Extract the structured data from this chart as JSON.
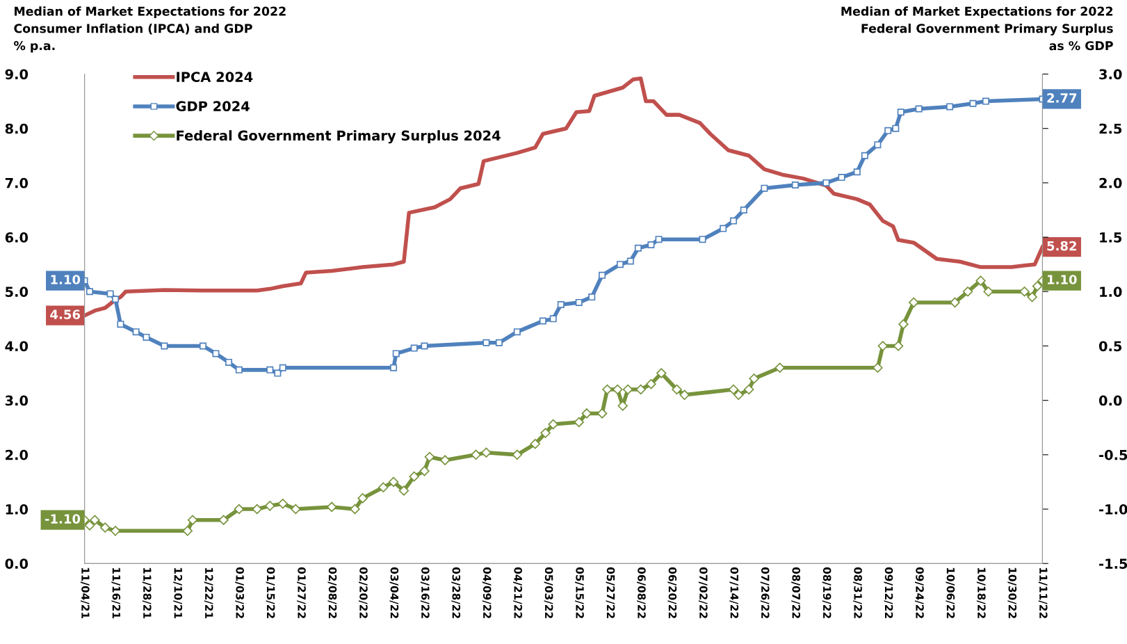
{
  "chart_data": {
    "type": "line",
    "ylabel": "Median of Market Expectations for 2022\nConsumer Inflation (IPCA) and GDP\n% p.a.",
    "y2label": "Median of Market Expectations for 2022\nFederal Government Primary Surplus\nas % GDP",
    "xlim": [
      "2021-11-04",
      "2022-11-11"
    ],
    "xticks": [
      {
        "value": "2021-11-04",
        "label": "11/04/21"
      },
      {
        "value": "2021-11-16",
        "label": "11/16/21"
      },
      {
        "value": "2021-11-28",
        "label": "11/28/21"
      },
      {
        "value": "2021-12-10",
        "label": "12/10/21"
      },
      {
        "value": "2021-12-22",
        "label": "12/22/21"
      },
      {
        "value": "2022-01-03",
        "label": "01/03/22"
      },
      {
        "value": "2022-01-15",
        "label": "01/15/22"
      },
      {
        "value": "2022-01-27",
        "label": "01/27/22"
      },
      {
        "value": "2022-02-08",
        "label": "02/08/22"
      },
      {
        "value": "2022-02-20",
        "label": "02/20/22"
      },
      {
        "value": "2022-03-04",
        "label": "03/04/22"
      },
      {
        "value": "2022-03-16",
        "label": "03/16/22"
      },
      {
        "value": "2022-03-28",
        "label": "03/28/22"
      },
      {
        "value": "2022-04-09",
        "label": "04/09/22"
      },
      {
        "value": "2022-04-21",
        "label": "04/21/22"
      },
      {
        "value": "2022-05-03",
        "label": "05/03/22"
      },
      {
        "value": "2022-05-15",
        "label": "05/15/22"
      },
      {
        "value": "2022-05-27",
        "label": "05/27/22"
      },
      {
        "value": "2022-06-08",
        "label": "06/08/22"
      },
      {
        "value": "2022-06-20",
        "label": "06/20/22"
      },
      {
        "value": "2022-07-02",
        "label": "07/02/22"
      },
      {
        "value": "2022-07-14",
        "label": "07/14/22"
      },
      {
        "value": "2022-07-26",
        "label": "07/26/22"
      },
      {
        "value": "2022-08-07",
        "label": "08/07/22"
      },
      {
        "value": "2022-08-19",
        "label": "08/19/22"
      },
      {
        "value": "2022-08-31",
        "label": "08/31/22"
      },
      {
        "value": "2022-09-12",
        "label": "09/12/22"
      },
      {
        "value": "2022-09-24",
        "label": "09/24/22"
      },
      {
        "value": "2022-10-06",
        "label": "10/06/22"
      },
      {
        "value": "2022-10-18",
        "label": "10/18/22"
      },
      {
        "value": "2022-10-30",
        "label": "10/30/22"
      },
      {
        "value": "2022-11-11",
        "label": "11/11/22"
      }
    ],
    "ylim": [
      0,
      9
    ],
    "yticks": [
      {
        "value": 0,
        "label": "0.0"
      },
      {
        "value": 1,
        "label": "1.0"
      },
      {
        "value": 2,
        "label": "2.0"
      },
      {
        "value": 3,
        "label": "3.0"
      },
      {
        "value": 4,
        "label": "4.0"
      },
      {
        "value": 5,
        "label": "5.0"
      },
      {
        "value": 6,
        "label": "6.0"
      },
      {
        "value": 7,
        "label": "7.0"
      },
      {
        "value": 8,
        "label": "8.0"
      },
      {
        "value": 9,
        "label": "9.0"
      }
    ],
    "y2lim": [
      -1.5,
      3
    ],
    "y2ticks": [
      {
        "value": -1.5,
        "label": "-1.5"
      },
      {
        "value": -1,
        "label": "-1.0"
      },
      {
        "value": -0.5,
        "label": "-0.5"
      },
      {
        "value": 0,
        "label": "0.0"
      },
      {
        "value": 0.5,
        "label": "0.5"
      },
      {
        "value": 1,
        "label": "1.0"
      },
      {
        "value": 1.5,
        "label": "1.5"
      },
      {
        "value": 2,
        "label": "2.0"
      },
      {
        "value": 2.5,
        "label": "2.5"
      },
      {
        "value": 3,
        "label": "3.0"
      }
    ],
    "grid": false,
    "legend": "top left",
    "line_style": "solid",
    "series": [
      {
        "name": "IPCA 2024",
        "color": "#c0504d",
        "marker": "none",
        "x": [
          "2021-11-04",
          "2021-11-08",
          "2021-11-12",
          "2021-11-16",
          "2021-11-18",
          "2021-11-20",
          "2021-12-05",
          "2021-12-20",
          "2022-01-10",
          "2022-01-15",
          "2022-01-20",
          "2022-01-27",
          "2022-01-29",
          "2022-02-08",
          "2022-02-20",
          "2022-03-04",
          "2022-03-08",
          "2022-03-10",
          "2022-03-20",
          "2022-03-26",
          "2022-03-30",
          "2022-04-06",
          "2022-04-08",
          "2022-04-21",
          "2022-04-28",
          "2022-05-01",
          "2022-05-10",
          "2022-05-14",
          "2022-05-19",
          "2022-05-21",
          "2022-06-01",
          "2022-06-05",
          "2022-06-08",
          "2022-06-10",
          "2022-06-13",
          "2022-06-18",
          "2022-06-23",
          "2022-07-01",
          "2022-07-05",
          "2022-07-12",
          "2022-07-20",
          "2022-07-26",
          "2022-08-02",
          "2022-08-10",
          "2022-08-19",
          "2022-08-22",
          "2022-08-31",
          "2022-09-05",
          "2022-09-10",
          "2022-09-14",
          "2022-09-16",
          "2022-09-22",
          "2022-10-01",
          "2022-10-10",
          "2022-10-18",
          "2022-10-30",
          "2022-11-04",
          "2022-11-08",
          "2022-11-11"
        ],
        "values": [
          4.56,
          4.65,
          4.7,
          4.85,
          4.9,
          5.0,
          5.03,
          5.02,
          5.02,
          5.05,
          5.1,
          5.15,
          5.35,
          5.38,
          5.45,
          5.5,
          5.55,
          6.45,
          6.55,
          6.7,
          6.9,
          6.98,
          7.4,
          7.55,
          7.65,
          7.9,
          8.0,
          8.3,
          8.32,
          8.6,
          8.75,
          8.9,
          8.92,
          8.5,
          8.5,
          8.25,
          8.25,
          8.1,
          7.9,
          7.6,
          7.5,
          7.25,
          7.15,
          7.08,
          6.95,
          6.8,
          6.7,
          6.6,
          6.3,
          6.2,
          5.95,
          5.9,
          5.6,
          5.55,
          5.45,
          5.45,
          5.48,
          5.5,
          5.82
        ],
        "value_labels": [
          "4.56",
          null,
          null,
          null,
          null,
          null,
          null,
          null,
          null,
          null,
          null,
          null,
          null,
          null,
          null,
          null,
          null,
          null,
          null,
          null,
          null,
          null,
          null,
          null,
          null,
          null,
          null,
          null,
          null,
          null,
          null,
          null,
          null,
          null,
          null,
          null,
          null,
          null,
          null,
          null,
          null,
          null,
          null,
          null,
          null,
          null,
          null,
          null,
          null,
          null,
          null,
          null,
          null,
          null,
          null,
          null,
          null,
          null,
          "5.82"
        ]
      },
      {
        "name": "GDP 2024",
        "color": "#4f81bd",
        "marker": "square",
        "axis": "y2",
        "x": [
          "2021-11-04",
          "2021-11-06",
          "2021-11-14",
          "2021-11-16",
          "2021-11-18",
          "2021-11-24",
          "2021-11-28",
          "2021-12-05",
          "2021-12-20",
          "2021-12-25",
          "2021-12-30",
          "2022-01-03",
          "2022-01-15",
          "2022-01-18",
          "2022-01-20",
          "2022-03-04",
          "2022-03-05",
          "2022-03-12",
          "2022-03-16",
          "2022-04-09",
          "2022-04-14",
          "2022-04-21",
          "2022-05-01",
          "2022-05-05",
          "2022-05-08",
          "2022-05-15",
          "2022-05-20",
          "2022-05-24",
          "2022-05-31",
          "2022-06-04",
          "2022-06-07",
          "2022-06-12",
          "2022-06-15",
          "2022-07-02",
          "2022-07-10",
          "2022-07-14",
          "2022-07-18",
          "2022-07-26",
          "2022-08-07",
          "2022-08-19",
          "2022-08-25",
          "2022-08-31",
          "2022-09-03",
          "2022-09-08",
          "2022-09-12",
          "2022-09-15",
          "2022-09-17",
          "2022-09-24",
          "2022-10-06",
          "2022-10-15",
          "2022-10-20",
          "2022-11-11"
        ],
        "values": [
          1.1,
          1.0,
          0.98,
          0.93,
          0.7,
          0.63,
          0.58,
          0.5,
          0.5,
          0.43,
          0.35,
          0.28,
          0.28,
          0.25,
          0.3,
          0.3,
          0.43,
          0.48,
          0.5,
          0.53,
          0.53,
          0.63,
          0.73,
          0.75,
          0.88,
          0.9,
          0.95,
          1.15,
          1.25,
          1.28,
          1.4,
          1.43,
          1.48,
          1.48,
          1.58,
          1.65,
          1.75,
          1.95,
          1.98,
          2.0,
          2.05,
          2.1,
          2.25,
          2.35,
          2.48,
          2.5,
          2.65,
          2.68,
          2.7,
          2.73,
          2.75,
          2.77
        ],
        "value_labels": [
          "1.10",
          null,
          null,
          null,
          null,
          null,
          null,
          null,
          null,
          null,
          null,
          null,
          null,
          null,
          null,
          null,
          null,
          null,
          null,
          null,
          null,
          null,
          null,
          null,
          null,
          null,
          null,
          null,
          null,
          null,
          null,
          null,
          null,
          null,
          null,
          null,
          null,
          null,
          null,
          null,
          null,
          null,
          null,
          null,
          null,
          null,
          null,
          null,
          null,
          null,
          null,
          "2.77"
        ]
      },
      {
        "name": "Federal Government Primary Surplus 2024",
        "color": "#77933c",
        "marker": "diamond",
        "axis": "y2",
        "x": [
          "2021-11-04",
          "2021-11-06",
          "2021-11-08",
          "2021-11-12",
          "2021-11-16",
          "2021-12-14",
          "2021-12-16",
          "2021-12-28",
          "2022-01-03",
          "2022-01-10",
          "2022-01-15",
          "2022-01-20",
          "2022-01-25",
          "2022-02-08",
          "2022-02-17",
          "2022-02-20",
          "2022-02-28",
          "2022-03-04",
          "2022-03-08",
          "2022-03-12",
          "2022-03-16",
          "2022-03-18",
          "2022-03-24",
          "2022-04-05",
          "2022-04-09",
          "2022-04-21",
          "2022-04-28",
          "2022-05-02",
          "2022-05-05",
          "2022-05-15",
          "2022-05-18",
          "2022-05-24",
          "2022-05-26",
          "2022-05-30",
          "2022-06-01",
          "2022-06-03",
          "2022-06-08",
          "2022-06-12",
          "2022-06-16",
          "2022-06-22",
          "2022-06-25",
          "2022-07-14",
          "2022-07-16",
          "2022-07-20",
          "2022-07-22",
          "2022-08-01",
          "2022-09-08",
          "2022-09-10",
          "2022-09-16",
          "2022-09-18",
          "2022-09-22",
          "2022-10-08",
          "2022-10-13",
          "2022-10-18",
          "2022-10-21",
          "2022-11-04",
          "2022-11-07",
          "2022-11-09",
          "2022-11-11"
        ],
        "values": [
          -1.1,
          -1.15,
          -1.1,
          -1.17,
          -1.2,
          -1.2,
          -1.1,
          -1.1,
          -1.0,
          -1.0,
          -0.97,
          -0.95,
          -1.0,
          -0.98,
          -1.0,
          -0.9,
          -0.8,
          -0.75,
          -0.83,
          -0.7,
          -0.65,
          -0.52,
          -0.55,
          -0.5,
          -0.48,
          -0.5,
          -0.4,
          -0.3,
          -0.22,
          -0.2,
          -0.12,
          -0.12,
          0.1,
          0.1,
          -0.05,
          0.1,
          0.1,
          0.15,
          0.25,
          0.1,
          0.05,
          0.1,
          0.05,
          0.1,
          0.2,
          0.3,
          0.3,
          0.5,
          0.5,
          0.7,
          0.9,
          0.9,
          1.0,
          1.1,
          1.0,
          1.0,
          0.95,
          1.05,
          1.1
        ],
        "value_labels": [
          "-1.10",
          null,
          null,
          null,
          null,
          null,
          null,
          null,
          null,
          null,
          null,
          null,
          null,
          null,
          null,
          null,
          null,
          null,
          null,
          null,
          null,
          null,
          null,
          null,
          null,
          null,
          null,
          null,
          null,
          null,
          null,
          null,
          null,
          null,
          null,
          null,
          null,
          null,
          null,
          null,
          null,
          null,
          null,
          null,
          null,
          null,
          null,
          null,
          null,
          null,
          null,
          null,
          null,
          null,
          null,
          null,
          null,
          null,
          "1.10"
        ]
      }
    ]
  }
}
